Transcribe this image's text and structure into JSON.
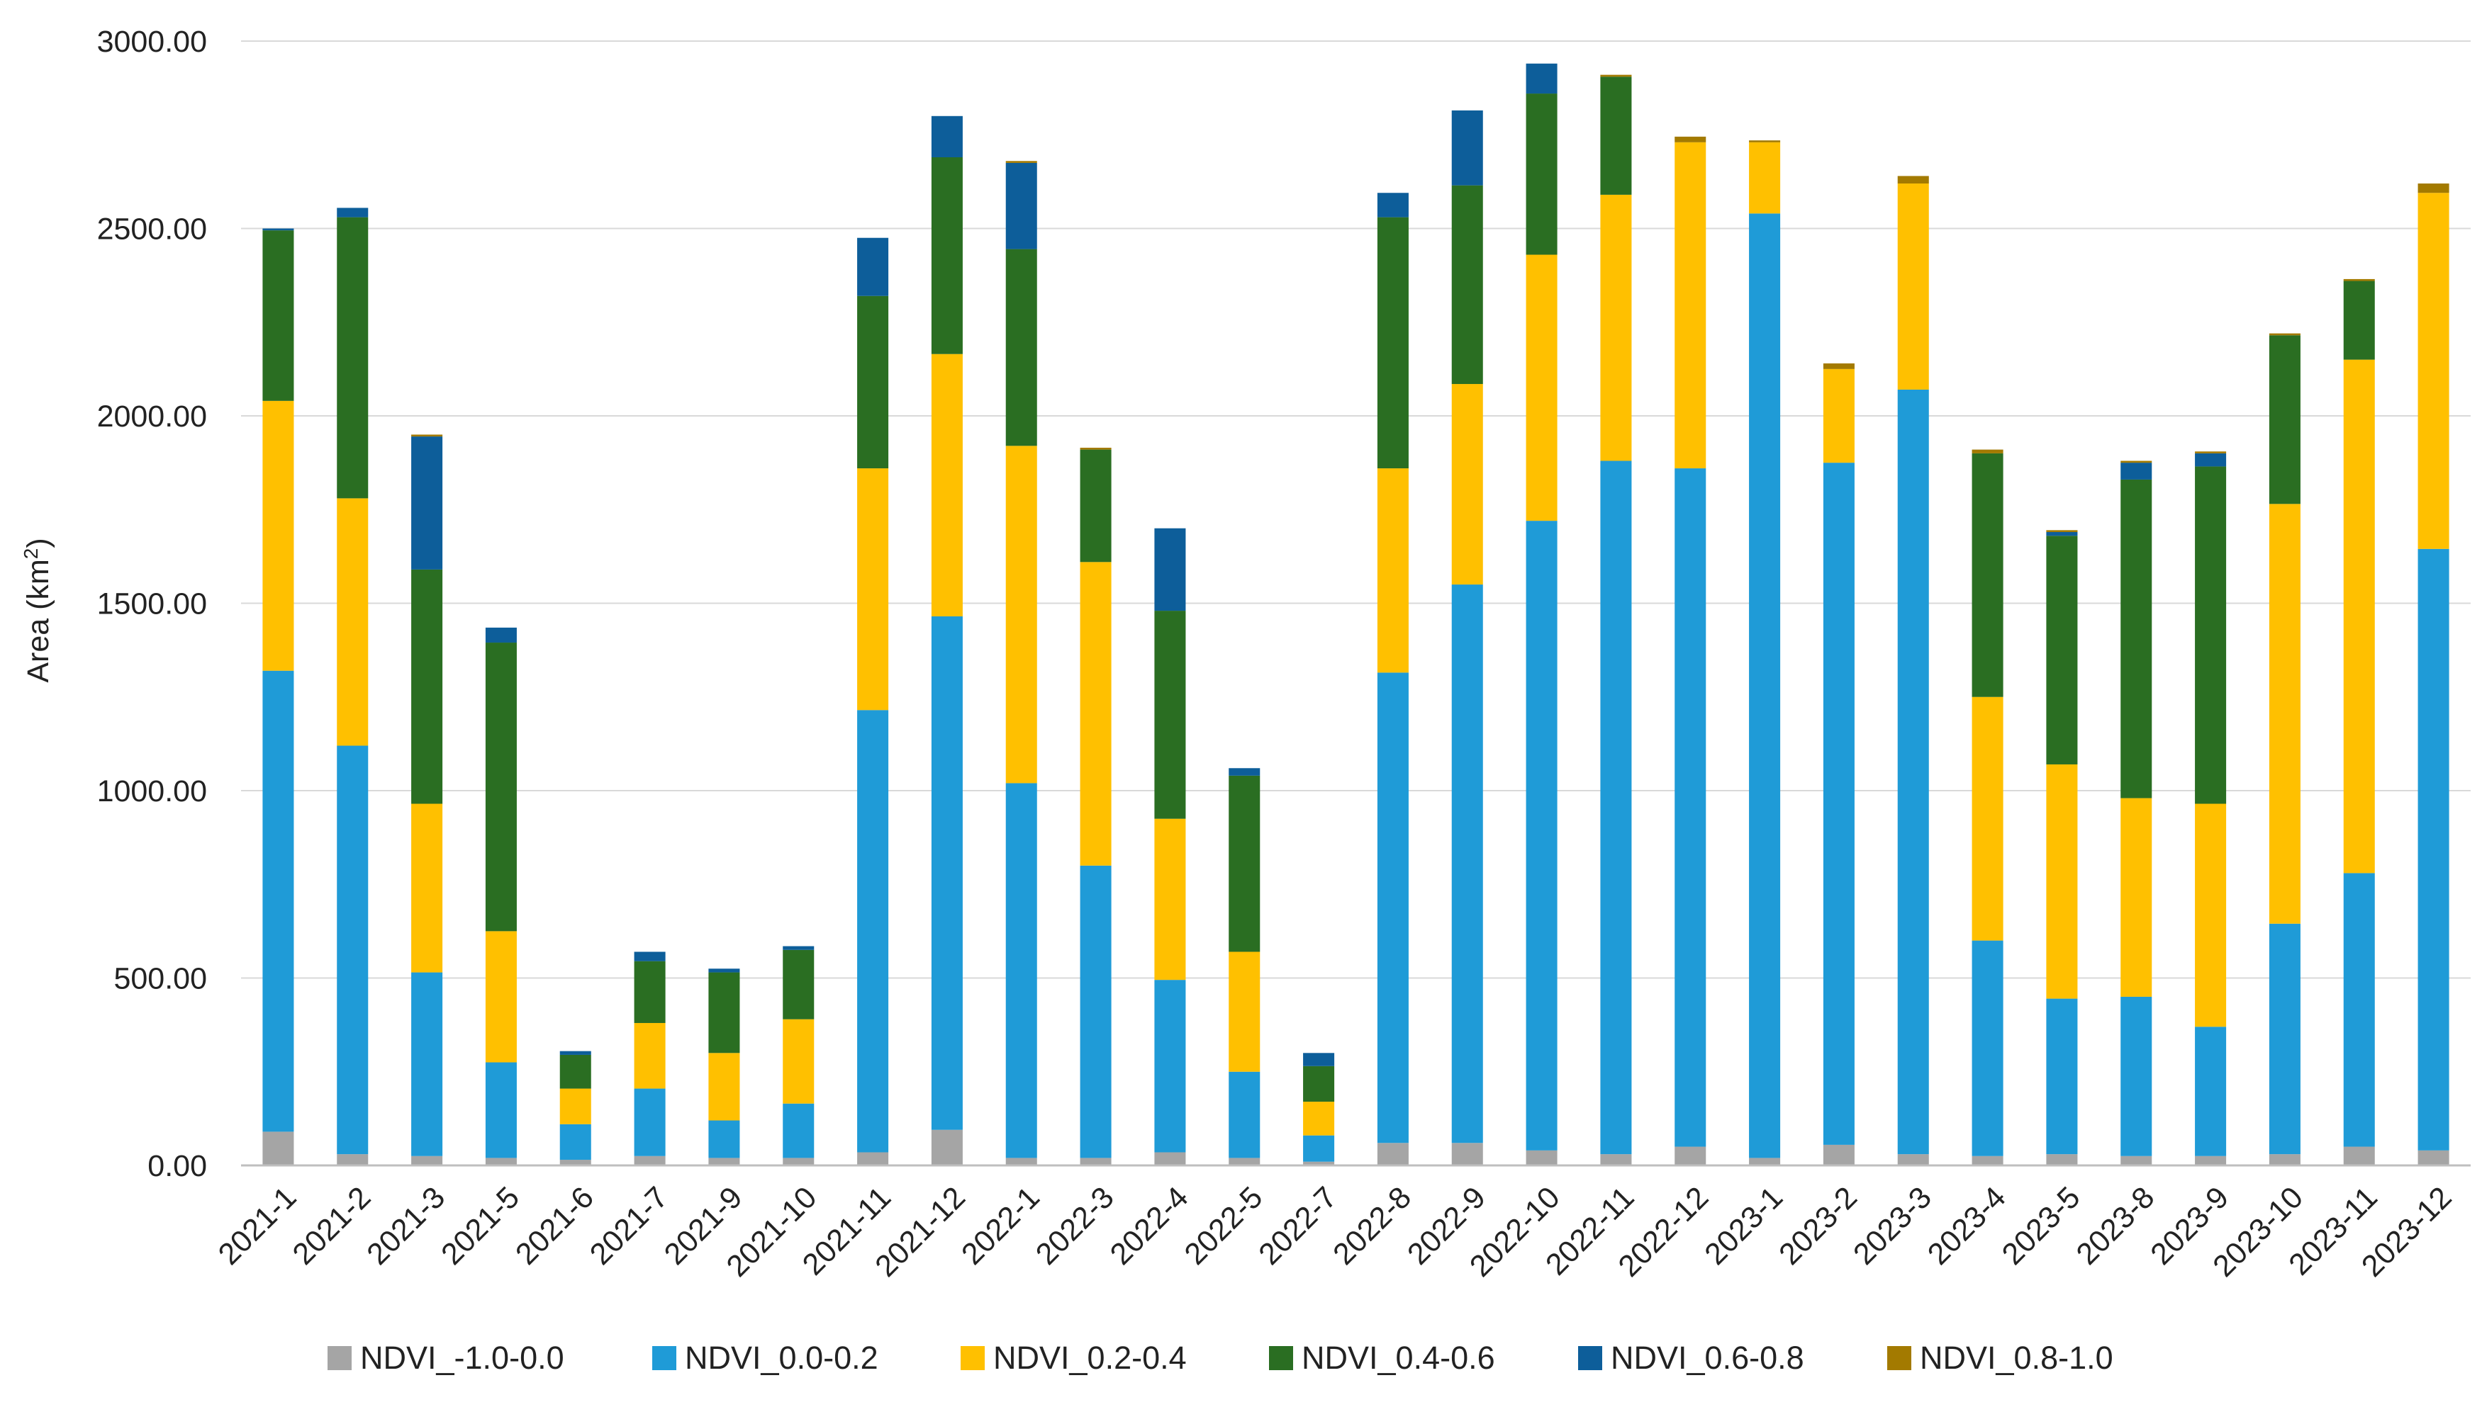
{
  "chart_data": {
    "type": "bar",
    "stacked": true,
    "title": "",
    "xlabel": "",
    "ylabel": "Area (km",
    "ylabel_superscript": "2",
    "ylabel_close": ")",
    "ylim": [
      0,
      3000
    ],
    "yticks": [
      "0.00",
      "500.00",
      "1000.00",
      "1500.00",
      "2000.00",
      "2500.00",
      "3000.00"
    ],
    "grid": true,
    "legend_position": "bottom",
    "categories": [
      "2021-1",
      "2021-2",
      "2021-3",
      "2021-5",
      "2021-6",
      "2021-7",
      "2021-9",
      "2021-10",
      "2021-11",
      "2021-12",
      "2022-1",
      "2022-3",
      "2022-4",
      "2022-5",
      "2022-7",
      "2022-8",
      "2022-9",
      "2022-10",
      "2022-11",
      "2022-12",
      "2023-1",
      "2023-2",
      "2023-3",
      "2023-4",
      "2023-5",
      "2023-8",
      "2023-9",
      "2023-10",
      "2023-11",
      "2023-12"
    ],
    "series": [
      {
        "name": "NDVI_-1.0-0.0",
        "color": "#a5a5a5",
        "values": [
          90,
          30,
          25,
          20,
          15,
          25,
          20,
          20,
          35,
          95,
          20,
          20,
          35,
          20,
          10,
          60,
          60,
          40,
          30,
          50,
          20,
          55,
          30,
          25,
          30,
          25,
          25,
          30,
          50,
          40
        ]
      },
      {
        "name": "NDVI_0.0-0.2",
        "color": "#1f9bd7",
        "values": [
          1230,
          1090,
          490,
          255,
          95,
          180,
          100,
          145,
          1180,
          1370,
          1000,
          780,
          460,
          230,
          70,
          1255,
          1490,
          1680,
          1850,
          1810,
          2520,
          1820,
          2040,
          575,
          415,
          425,
          345,
          615,
          730,
          1605
        ]
      },
      {
        "name": "NDVI_0.2-0.4",
        "color": "#ffc000",
        "values": [
          720,
          660,
          450,
          350,
          95,
          175,
          180,
          225,
          645,
          700,
          900,
          810,
          430,
          320,
          90,
          545,
          535,
          710,
          710,
          870,
          190,
          250,
          550,
          650,
          625,
          530,
          595,
          1120,
          1370,
          950
        ]
      },
      {
        "name": "NDVI_0.4-0.6",
        "color": "#2a6e22",
        "values": [
          455,
          750,
          625,
          770,
          90,
          165,
          215,
          185,
          460,
          525,
          525,
          300,
          555,
          470,
          95,
          670,
          530,
          430,
          315,
          0,
          0,
          0,
          0,
          650,
          610,
          850,
          900,
          450,
          210,
          0
        ]
      },
      {
        "name": "NDVI_0.6-0.8",
        "color": "#0d5e9a",
        "values": [
          5,
          25,
          355,
          40,
          10,
          25,
          10,
          10,
          155,
          110,
          230,
          0,
          220,
          20,
          35,
          65,
          200,
          80,
          0,
          0,
          0,
          0,
          0,
          0,
          10,
          45,
          35,
          0,
          0,
          0
        ]
      },
      {
        "name": "NDVI_0.8-1.0",
        "color": "#a37a00",
        "values": [
          0,
          0,
          5,
          0,
          0,
          0,
          0,
          0,
          0,
          0,
          5,
          5,
          0,
          0,
          0,
          0,
          0,
          0,
          5,
          15,
          5,
          15,
          20,
          10,
          5,
          5,
          5,
          5,
          5,
          25
        ]
      }
    ]
  }
}
